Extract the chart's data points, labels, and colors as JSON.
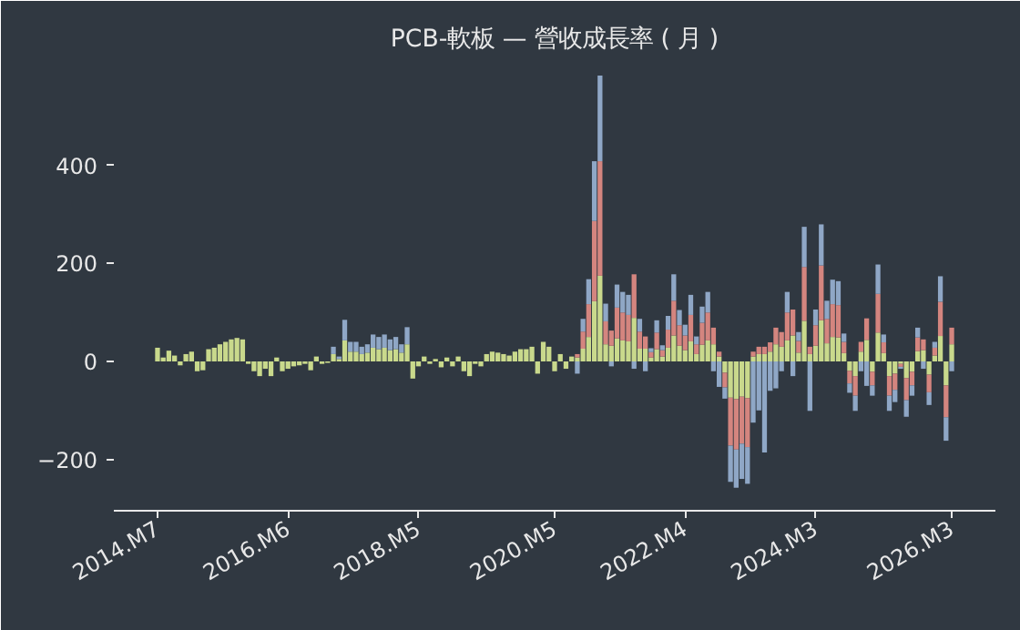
{
  "chart_data": {
    "type": "bar",
    "stacked": true,
    "title": "PCB-軟板 — 營收成長率 ( 月 )",
    "categories": [
      "2014.M7",
      null,
      null,
      null,
      null,
      null,
      null,
      null,
      null,
      null,
      null,
      null,
      null,
      null,
      null,
      null,
      null,
      null,
      null,
      null,
      null,
      null,
      null,
      "2016.M6",
      null,
      null,
      null,
      null,
      null,
      null,
      null,
      null,
      null,
      null,
      null,
      null,
      null,
      null,
      null,
      null,
      null,
      null,
      null,
      null,
      null,
      null,
      "2018.M5",
      null,
      null,
      null,
      null,
      null,
      null,
      null,
      null,
      null,
      null,
      null,
      null,
      null,
      null,
      null,
      null,
      null,
      null,
      null,
      null,
      null,
      null,
      null,
      "2020.M5",
      null,
      null,
      null,
      null,
      null,
      null,
      null,
      null,
      null,
      null,
      null,
      null,
      null,
      null,
      null,
      null,
      null,
      null,
      null,
      null,
      null,
      null,
      "2022.M4",
      null,
      null,
      null,
      null,
      null,
      null,
      null,
      null,
      null,
      null,
      null,
      null,
      null,
      null,
      null,
      null,
      null,
      null,
      null,
      null,
      null,
      null,
      "2024.M3",
      null,
      null,
      null,
      null,
      null,
      null,
      null,
      null,
      null,
      null,
      null,
      null,
      null,
      null,
      null,
      null,
      null,
      null,
      null,
      null,
      null,
      null,
      null,
      "2026.M3"
    ],
    "series": [
      {
        "color": "#c9d98c",
        "values": [
          28,
          8,
          22,
          12,
          -8,
          15,
          20,
          -20,
          -18,
          25,
          28,
          35,
          40,
          45,
          48,
          45,
          -5,
          -20,
          -30,
          -15,
          -30,
          8,
          -20,
          -15,
          -10,
          -8,
          -5,
          -18,
          10,
          -5,
          -3,
          15,
          5,
          43,
          20,
          20,
          15,
          18,
          28,
          25,
          28,
          23,
          25,
          18,
          35,
          -35,
          -10,
          10,
          -5,
          5,
          -12,
          8,
          -10,
          10,
          -20,
          -30,
          -5,
          -10,
          15,
          20,
          18,
          15,
          12,
          20,
          25,
          25,
          30,
          -25,
          40,
          30,
          -20,
          15,
          -15,
          10,
          8,
          26,
          50,
          123,
          175,
          35,
          32,
          47,
          43,
          41,
          89,
          26,
          26,
          8,
          25,
          10,
          28,
          53,
          32,
          23,
          41,
          15,
          34,
          43,
          35,
          10,
          -23,
          -74,
          -77,
          -72,
          -75,
          10,
          15,
          15,
          20,
          35,
          30,
          43,
          53,
          18,
          83,
          15,
          32,
          84,
          37,
          50,
          49,
          17,
          -19,
          -30,
          20,
          44,
          -21,
          59,
          17,
          -30,
          -25,
          -5,
          -34,
          -21,
          21,
          23,
          -27,
          12,
          52,
          -49,
          35
        ]
      },
      {
        "color": "#d4857f",
        "values": [
          null,
          null,
          null,
          null,
          null,
          null,
          null,
          null,
          null,
          null,
          null,
          null,
          null,
          null,
          null,
          null,
          null,
          null,
          null,
          null,
          null,
          null,
          null,
          null,
          null,
          null,
          null,
          null,
          null,
          null,
          null,
          null,
          null,
          null,
          null,
          null,
          null,
          null,
          null,
          null,
          null,
          null,
          null,
          null,
          null,
          null,
          null,
          null,
          null,
          null,
          null,
          null,
          null,
          null,
          null,
          null,
          null,
          null,
          null,
          null,
          null,
          null,
          null,
          null,
          null,
          null,
          null,
          null,
          null,
          null,
          null,
          null,
          null,
          null,
          7,
          35,
          67,
          164,
          234,
          47,
          31,
          63,
          57,
          54,
          89,
          35,
          25,
          11,
          34,
          13,
          37,
          71,
          42,
          30,
          54,
          20,
          45,
          57,
          34,
          10,
          -30,
          -98,
          -103,
          -96,
          -100,
          10,
          15,
          15,
          19,
          34,
          30,
          57,
          53,
          24,
          110,
          15,
          42,
          112,
          50,
          67,
          66,
          23,
          -26,
          -40,
          20,
          44,
          -28,
          79,
          22,
          -40,
          -33,
          -6,
          -45,
          -28,
          28,
          22,
          -36,
          16,
          70,
          -65,
          34
        ]
      },
      {
        "color": "#8fa7c6",
        "values": [
          null,
          null,
          null,
          null,
          null,
          null,
          null,
          null,
          null,
          null,
          null,
          null,
          null,
          null,
          null,
          null,
          null,
          null,
          null,
          null,
          null,
          null,
          null,
          null,
          null,
          null,
          null,
          null,
          null,
          null,
          null,
          15,
          5,
          42,
          20,
          20,
          15,
          17,
          27,
          25,
          27,
          22,
          25,
          17,
          35,
          null,
          null,
          null,
          null,
          null,
          null,
          null,
          null,
          null,
          null,
          null,
          null,
          null,
          null,
          null,
          null,
          null,
          null,
          null,
          null,
          null,
          null,
          null,
          null,
          null,
          null,
          null,
          null,
          null,
          -25,
          26,
          51,
          122,
          175,
          36,
          -10,
          47,
          42,
          41,
          -15,
          26,
          -20,
          8,
          25,
          10,
          28,
          54,
          31,
          22,
          41,
          16,
          33,
          42,
          -20,
          -52,
          -23,
          -74,
          -78,
          -72,
          -75,
          -125,
          -100,
          -186,
          -60,
          -55,
          -20,
          42,
          -30,
          18,
          82,
          -101,
          32,
          84,
          37,
          50,
          49,
          17,
          -19,
          -31,
          -20,
          -50,
          -21,
          60,
          16,
          -31,
          -25,
          -4,
          -34,
          -21,
          20,
          -15,
          -26,
          12,
          52,
          -48,
          -20
        ]
      }
    ],
    "ylim": [
      -305,
      610
    ],
    "yticks": [
      {
        "value": -200,
        "label": "−200"
      },
      0,
      200,
      400
    ]
  }
}
